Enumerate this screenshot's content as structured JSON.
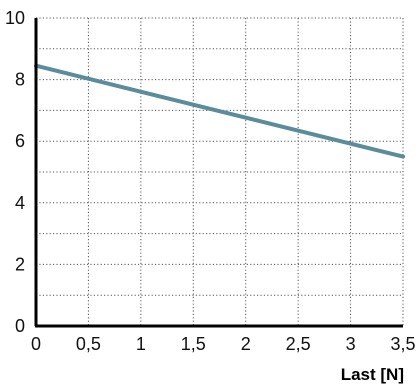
{
  "chart_data": {
    "type": "line",
    "title": "",
    "xlabel": "Last [N]",
    "ylabel": "",
    "xlim": [
      0,
      3.5
    ],
    "ylim": [
      0,
      10
    ],
    "x_ticks": [
      0,
      0.5,
      1,
      1.5,
      2,
      2.5,
      3,
      3.5
    ],
    "x_tick_labels": [
      "0",
      "0,5",
      "1",
      "1,5",
      "2",
      "2,5",
      "3",
      "3,5"
    ],
    "y_ticks": [
      0,
      2,
      4,
      6,
      8,
      10
    ],
    "y_tick_labels": [
      "0",
      "2",
      "4",
      "6",
      "8",
      "10"
    ],
    "grid": true,
    "grid_style": "dotted",
    "series": [
      {
        "color": "#5a8c9c",
        "x": [
          0,
          3.5
        ],
        "y": [
          8.45,
          5.5
        ]
      }
    ]
  }
}
